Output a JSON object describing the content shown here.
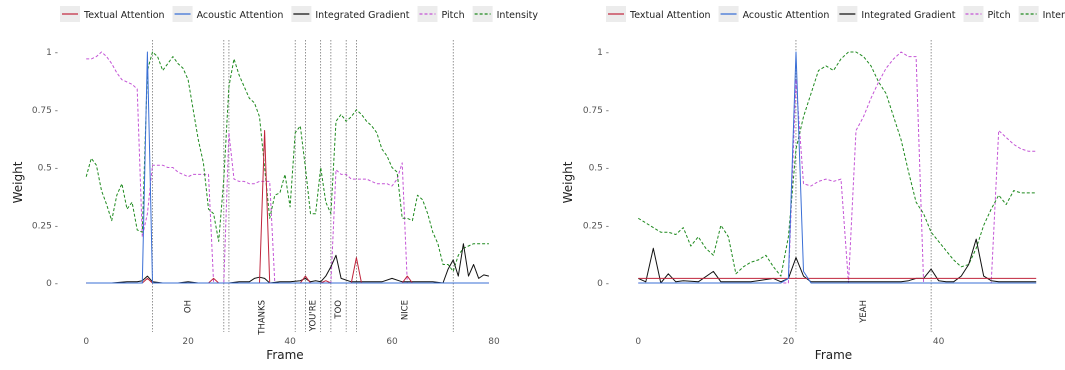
{
  "chart_data": [
    {
      "type": "line",
      "xlabel": "Frame",
      "ylabel": "Weight",
      "xlim": [
        -2,
        80
      ],
      "ylim": [
        -0.18,
        1.07
      ],
      "x_ticks": [
        0,
        20,
        40,
        60,
        80
      ],
      "y_ticks": [
        0,
        0.25,
        0.5,
        0.75,
        1
      ],
      "y_tick_labels": [
        "0 -",
        "0.25 -",
        "0.5 -",
        "0.75 -",
        "1 -"
      ],
      "legend_position": "top",
      "word_boundaries": [
        13,
        27,
        28,
        41,
        43,
        46,
        48,
        51,
        53,
        72
      ],
      "words": [
        {
          "text": "OH",
          "x": 20
        },
        {
          "text": "THANKS",
          "x": 34.5
        },
        {
          "text": "YOU'RE",
          "x": 44.5
        },
        {
          "text": "TOO",
          "x": 49.5
        },
        {
          "text": "NICE",
          "x": 62.5
        }
      ],
      "series": [
        {
          "name": "Textual Attention",
          "color": "#c0243c",
          "dash": "solid",
          "x": [
            0,
            10,
            11,
            12,
            13,
            14,
            20,
            24,
            25,
            26,
            27,
            28,
            29,
            30,
            33,
            34,
            35,
            36,
            37,
            40,
            42,
            43,
            44,
            46,
            47,
            48,
            52,
            53,
            54,
            55,
            62,
            63,
            64,
            70,
            79
          ],
          "y": [
            0,
            0,
            0,
            0.02,
            0,
            0,
            0,
            0,
            0.02,
            0,
            0,
            0,
            0,
            0,
            0,
            0,
            0.66,
            0,
            0,
            0,
            0,
            0.03,
            0,
            0,
            0.01,
            0,
            0,
            0.11,
            0,
            0,
            0,
            0.03,
            0,
            0,
            0
          ]
        },
        {
          "name": "Acoustic Attention",
          "color": "#3a6fd6",
          "dash": "solid",
          "x": [
            0,
            10,
            11,
            12,
            13,
            14,
            20,
            40,
            60,
            79
          ],
          "y": [
            0,
            0,
            0,
            1.0,
            0,
            0,
            0,
            0,
            0,
            0
          ]
        },
        {
          "name": "Integrated Gradient",
          "color": "#111111",
          "dash": "solid",
          "x": [
            0,
            5,
            8,
            10,
            11,
            12,
            13,
            15,
            18,
            20,
            22,
            25,
            28,
            30,
            32,
            33,
            34,
            35,
            36,
            38,
            40,
            42,
            43,
            44,
            45,
            46,
            47,
            48,
            49,
            50,
            52,
            55,
            58,
            60,
            62,
            65,
            68,
            70,
            71,
            72,
            73,
            74,
            75,
            76,
            77,
            78,
            79
          ],
          "y": [
            0,
            0,
            0.005,
            0.005,
            0.01,
            0.03,
            0.005,
            0,
            0,
            0.005,
            0,
            0,
            0,
            0.005,
            0.005,
            0.02,
            0.025,
            0.02,
            0,
            0.005,
            0.005,
            0.01,
            0.02,
            0.005,
            0.01,
            0.005,
            0.03,
            0.07,
            0.12,
            0.02,
            0.005,
            0.005,
            0.005,
            0.02,
            0.005,
            0.005,
            0.005,
            0,
            0.06,
            0.1,
            0.03,
            0.17,
            0.03,
            0.08,
            0.02,
            0.035,
            0.03
          ]
        },
        {
          "name": "Pitch",
          "color": "#c455d6",
          "dash": "dashed",
          "x": [
            0,
            1,
            2,
            3,
            4,
            5,
            6,
            7,
            8,
            9,
            10,
            11,
            12,
            13,
            14,
            15,
            16,
            17,
            18,
            19,
            20,
            21,
            22,
            23,
            24,
            25,
            26,
            27,
            28,
            29,
            30,
            31,
            32,
            33,
            34,
            35,
            36,
            37,
            38,
            39,
            40,
            41,
            42,
            43,
            44,
            45,
            46,
            47,
            48,
            49,
            50,
            51,
            52,
            53,
            54,
            55,
            56,
            57,
            58,
            59,
            60,
            61,
            62,
            63,
            64,
            70,
            79
          ],
          "y": [
            0.97,
            0.97,
            0.98,
            1.0,
            0.98,
            0.95,
            0.91,
            0.88,
            0.87,
            0.86,
            0.84,
            0.2,
            0.3,
            0.51,
            0.51,
            0.51,
            0.5,
            0.5,
            0.48,
            0.47,
            0.46,
            0.47,
            0.47,
            0.47,
            0.47,
            0.0,
            0.0,
            0.0,
            0.65,
            0.45,
            0.44,
            0.44,
            0.43,
            0.43,
            0.44,
            0.44,
            0.44,
            0.0,
            0.0,
            0.0,
            0.0,
            0.0,
            0.0,
            0.0,
            0.0,
            0.0,
            0.0,
            0.0,
            0.0,
            0.49,
            0.47,
            0.47,
            0.45,
            0.45,
            0.45,
            0.45,
            0.44,
            0.43,
            0.43,
            0.43,
            0.42,
            0.45,
            0.52,
            0.0,
            0.0,
            0.0,
            0.0
          ]
        },
        {
          "name": "Intensity",
          "color": "#1f8a1f",
          "dash": "dashed",
          "x": [
            0,
            1,
            2,
            3,
            4,
            5,
            6,
            7,
            8,
            9,
            10,
            11,
            12,
            13,
            14,
            15,
            16,
            17,
            18,
            19,
            20,
            21,
            22,
            23,
            24,
            25,
            26,
            27,
            28,
            29,
            30,
            31,
            32,
            33,
            34,
            35,
            36,
            37,
            38,
            39,
            40,
            41,
            42,
            43,
            44,
            45,
            46,
            47,
            48,
            49,
            50,
            51,
            52,
            53,
            54,
            55,
            56,
            57,
            58,
            59,
            60,
            61,
            62,
            63,
            64,
            65,
            66,
            67,
            68,
            69,
            70,
            71,
            72,
            73,
            74,
            75,
            76,
            77,
            78,
            79
          ],
          "y": [
            0.46,
            0.54,
            0.51,
            0.4,
            0.34,
            0.27,
            0.38,
            0.43,
            0.32,
            0.35,
            0.23,
            0.22,
            0.92,
            1.0,
            0.98,
            0.92,
            0.95,
            0.98,
            0.95,
            0.93,
            0.88,
            0.75,
            0.62,
            0.52,
            0.32,
            0.3,
            0.18,
            0.45,
            0.85,
            0.97,
            0.9,
            0.85,
            0.8,
            0.78,
            0.72,
            0.5,
            0.28,
            0.38,
            0.39,
            0.47,
            0.33,
            0.65,
            0.68,
            0.5,
            0.3,
            0.3,
            0.5,
            0.35,
            0.3,
            0.7,
            0.73,
            0.7,
            0.72,
            0.75,
            0.73,
            0.7,
            0.68,
            0.65,
            0.58,
            0.55,
            0.5,
            0.48,
            0.28,
            0.28,
            0.27,
            0.38,
            0.36,
            0.3,
            0.22,
            0.17,
            0.08,
            0.08,
            0.05,
            0.12,
            0.15,
            0.16,
            0.17,
            0.17,
            0.17,
            0.17
          ]
        }
      ]
    },
    {
      "type": "line",
      "xlabel": "Frame",
      "ylabel": "Weight",
      "xlim": [
        -1.5,
        53.5
      ],
      "ylim": [
        -0.18,
        1.07
      ],
      "x_ticks": [
        0,
        20,
        40
      ],
      "y_ticks": [
        0,
        0.25,
        0.5,
        0.75,
        1
      ],
      "y_tick_labels": [
        "0 -",
        "0.25 -",
        "0.5 -",
        "0.75 -",
        "1 -"
      ],
      "legend_position": "top",
      "word_boundaries": [
        21,
        39
      ],
      "words": [
        {
          "text": "YEAH",
          "x": 30
        }
      ],
      "series": [
        {
          "name": "Textual Attention",
          "color": "#c0243c",
          "dash": "solid",
          "x": [
            0,
            20,
            21,
            22,
            30,
            40,
            53
          ],
          "y": [
            0.02,
            0.02,
            0.02,
            0.02,
            0.02,
            0.02,
            0.02
          ]
        },
        {
          "name": "Acoustic Attention",
          "color": "#3a6fd6",
          "dash": "solid",
          "x": [
            0,
            19,
            20,
            21,
            22,
            23,
            53
          ],
          "y": [
            0,
            0,
            0.02,
            1.0,
            0.05,
            0,
            0
          ]
        },
        {
          "name": "Integrated Gradient",
          "color": "#111111",
          "dash": "solid",
          "x": [
            0,
            1,
            2,
            3,
            4,
            5,
            6,
            8,
            10,
            11,
            12,
            15,
            18,
            19,
            20,
            21,
            22,
            23,
            25,
            30,
            35,
            36,
            37,
            38,
            39,
            40,
            41,
            42,
            43,
            44,
            45,
            46,
            47,
            48,
            50,
            53
          ],
          "y": [
            0.02,
            0.005,
            0.15,
            0.0,
            0.04,
            0.005,
            0.01,
            0.005,
            0.05,
            0.005,
            0.005,
            0.005,
            0.02,
            0.005,
            0.02,
            0.11,
            0.03,
            0.005,
            0.005,
            0.005,
            0.005,
            0.01,
            0.02,
            0.02,
            0.06,
            0.01,
            0.005,
            0.005,
            0.03,
            0.08,
            0.19,
            0.03,
            0.01,
            0.005,
            0.005,
            0.005
          ]
        },
        {
          "name": "Pitch",
          "color": "#c455d6",
          "dash": "dashed",
          "x": [
            0,
            5,
            10,
            15,
            19,
            20,
            21,
            22,
            23,
            24,
            25,
            26,
            27,
            28,
            29,
            30,
            31,
            32,
            33,
            34,
            35,
            36,
            37,
            38,
            45,
            46,
            47,
            48,
            49,
            50,
            51,
            52,
            53
          ],
          "y": [
            0.0,
            0.0,
            0.0,
            0.0,
            0.0,
            0.0,
            0.88,
            0.43,
            0.42,
            0.44,
            0.45,
            0.44,
            0.45,
            0.0,
            0.66,
            0.72,
            0.8,
            0.87,
            0.93,
            0.97,
            1.0,
            0.98,
            0.98,
            0.0,
            0.0,
            0.0,
            0.0,
            0.66,
            0.63,
            0.6,
            0.58,
            0.57,
            0.57
          ]
        },
        {
          "name": "Intensity",
          "color": "#1f8a1f",
          "dash": "dashed",
          "x": [
            0,
            1,
            2,
            3,
            4,
            5,
            6,
            7,
            8,
            9,
            10,
            11,
            12,
            13,
            14,
            15,
            16,
            17,
            18,
            19,
            20,
            21,
            22,
            23,
            24,
            25,
            26,
            27,
            28,
            29,
            30,
            31,
            32,
            33,
            34,
            35,
            36,
            37,
            38,
            39,
            40,
            41,
            42,
            43,
            44,
            45,
            46,
            47,
            48,
            49,
            50,
            51,
            52,
            53
          ],
          "y": [
            0.28,
            0.26,
            0.24,
            0.22,
            0.22,
            0.21,
            0.24,
            0.16,
            0.2,
            0.15,
            0.12,
            0.25,
            0.2,
            0.04,
            0.07,
            0.09,
            0.1,
            0.12,
            0.07,
            0.03,
            0.2,
            0.58,
            0.72,
            0.82,
            0.92,
            0.94,
            0.92,
            0.97,
            1.0,
            1.0,
            0.98,
            0.94,
            0.87,
            0.82,
            0.72,
            0.62,
            0.48,
            0.35,
            0.3,
            0.22,
            0.18,
            0.14,
            0.1,
            0.07,
            0.08,
            0.15,
            0.25,
            0.32,
            0.38,
            0.34,
            0.4,
            0.39,
            0.39,
            0.39
          ]
        }
      ]
    }
  ]
}
